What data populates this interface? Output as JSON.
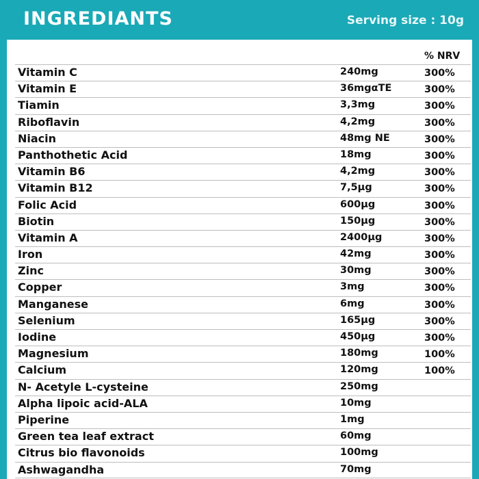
{
  "header": {
    "title": "INGREDIANTS",
    "serving": "Serving size : 10g"
  },
  "table": {
    "nrv_header": "% NRV",
    "rows": [
      {
        "name": "Vitamin C",
        "amount": "240mg",
        "nrv": "300%"
      },
      {
        "name": "Vitamin E",
        "amount": "36mgαTE",
        "nrv": "300%"
      },
      {
        "name": "Tiamin",
        "amount": "3,3mg",
        "nrv": "300%"
      },
      {
        "name": "Riboflavin",
        "amount": "4,2mg",
        "nrv": "300%"
      },
      {
        "name": "Niacin",
        "amount": "48mg NE",
        "nrv": "300%"
      },
      {
        "name": "Panthothetic Acid",
        "amount": "18mg",
        "nrv": "300%"
      },
      {
        "name": "Vitamin B6",
        "amount": "4,2mg",
        "nrv": "300%"
      },
      {
        "name": "Vitamin B12",
        "amount": "7,5μg",
        "nrv": "300%"
      },
      {
        "name": "Folic Acid",
        "amount": "600μg",
        "nrv": "300%"
      },
      {
        "name": "Biotin",
        "amount": "150μg",
        "nrv": "300%"
      },
      {
        "name": "Vitamin A",
        "amount": "2400μg",
        "nrv": "300%"
      },
      {
        "name": "Iron",
        "amount": "42mg",
        "nrv": "300%"
      },
      {
        "name": "Zinc",
        "amount": "30mg",
        "nrv": "300%"
      },
      {
        "name": "Copper",
        "amount": "3mg",
        "nrv": "300%"
      },
      {
        "name": "Manganese",
        "amount": "6mg",
        "nrv": "300%"
      },
      {
        "name": "Selenium",
        "amount": "165μg",
        "nrv": "300%"
      },
      {
        "name": "Iodine",
        "amount": "450μg",
        "nrv": "300%"
      },
      {
        "name": "Magnesium",
        "amount": "180mg",
        "nrv": "100%"
      },
      {
        "name": "Calcium",
        "amount": "120mg",
        "nrv": "100%"
      },
      {
        "name": "N- Acetyle L-cysteine",
        "amount": "250mg",
        "nrv": ""
      },
      {
        "name": "Alpha lipoic acid-ALA",
        "amount": "10mg",
        "nrv": ""
      },
      {
        "name": "Piperine",
        "amount": "1mg",
        "nrv": ""
      },
      {
        "name": "Green tea leaf extract",
        "amount": "60mg",
        "nrv": ""
      },
      {
        "name": "Citrus bio flavonoids",
        "amount": "100mg",
        "nrv": ""
      },
      {
        "name": "Ashwagandha",
        "amount": "70mg",
        "nrv": ""
      }
    ]
  },
  "colors": {
    "accent": "#1aa9b6"
  }
}
